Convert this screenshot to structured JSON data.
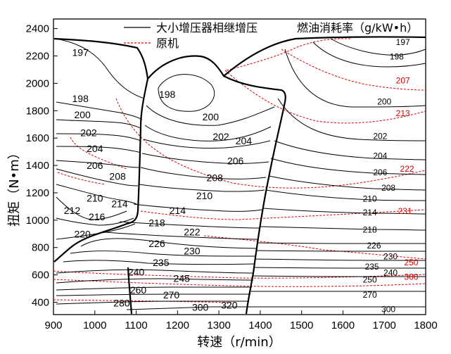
{
  "chart_data": {
    "type": "contour",
    "title": "燃油消耗率（g/kW•h）",
    "xlabel": "转速（r/min）",
    "ylabel": "扭矩（N•m）",
    "xlim": [
      900,
      1800
    ],
    "ylim": [
      310,
      2470
    ],
    "xticks": [
      "900",
      "1000",
      "1100",
      "1200",
      "1300",
      "1400",
      "1500",
      "1600",
      "1700",
      "1800"
    ],
    "yticks": [
      "400",
      "600",
      "800",
      "1000",
      "1200",
      "1400",
      "1600",
      "1800",
      "2000",
      "2200",
      "2400"
    ],
    "grid": false,
    "legend_placement": "top",
    "series": [
      {
        "name": "大小增压器相继增压",
        "style": "solid-black"
      },
      {
        "name": "原机",
        "style": "dashed-red"
      }
    ],
    "contour_labels_sequential": [
      {
        "text": "197",
        "x": 965,
        "y": 2225
      },
      {
        "text": "198",
        "x": 965,
        "y": 1890
      },
      {
        "text": "200",
        "x": 970,
        "y": 1770
      },
      {
        "text": "202",
        "x": 985,
        "y": 1640
      },
      {
        "text": "204",
        "x": 1000,
        "y": 1525
      },
      {
        "text": "206",
        "x": 1000,
        "y": 1400
      },
      {
        "text": "208",
        "x": 1055,
        "y": 1320
      },
      {
        "text": "210",
        "x": 1000,
        "y": 1160
      },
      {
        "text": "212",
        "x": 945,
        "y": 1070
      },
      {
        "text": "216",
        "x": 1005,
        "y": 1025
      },
      {
        "text": "214",
        "x": 1060,
        "y": 1120
      },
      {
        "text": "220",
        "x": 970,
        "y": 900
      },
      {
        "text": "198",
        "x": 1175,
        "y": 1920
      },
      {
        "text": "200",
        "x": 1280,
        "y": 1755
      },
      {
        "text": "202",
        "x": 1305,
        "y": 1610
      },
      {
        "text": "204",
        "x": 1360,
        "y": 1580
      },
      {
        "text": "206",
        "x": 1340,
        "y": 1435
      },
      {
        "text": "208",
        "x": 1290,
        "y": 1310
      },
      {
        "text": "210",
        "x": 1265,
        "y": 1180
      },
      {
        "text": "214",
        "x": 1200,
        "y": 1070
      },
      {
        "text": "218",
        "x": 1150,
        "y": 980
      },
      {
        "text": "222",
        "x": 1235,
        "y": 915
      },
      {
        "text": "226",
        "x": 1150,
        "y": 830
      },
      {
        "text": "230",
        "x": 1235,
        "y": 775
      },
      {
        "text": "235",
        "x": 1160,
        "y": 690
      },
      {
        "text": "240",
        "x": 1100,
        "y": 620
      },
      {
        "text": "245",
        "x": 1210,
        "y": 575
      },
      {
        "text": "260",
        "x": 1105,
        "y": 490
      },
      {
        "text": "270",
        "x": 1185,
        "y": 455
      },
      {
        "text": "280",
        "x": 1065,
        "y": 395
      },
      {
        "text": "300",
        "x": 1255,
        "y": 365
      },
      {
        "text": "320",
        "x": 1325,
        "y": 380
      }
    ],
    "contour_labels_original": [
      {
        "text": "197",
        "x": 1745,
        "y": 2305,
        "color": "#000000"
      },
      {
        "text": "198",
        "x": 1730,
        "y": 2200,
        "color": "#000000"
      },
      {
        "text": "207",
        "x": 1745,
        "y": 2025,
        "color": "#d40000"
      },
      {
        "text": "200",
        "x": 1700,
        "y": 1870,
        "color": "#000000"
      },
      {
        "text": "213",
        "x": 1745,
        "y": 1785,
        "color": "#d40000"
      },
      {
        "text": "202",
        "x": 1690,
        "y": 1620,
        "color": "#000000"
      },
      {
        "text": "204",
        "x": 1690,
        "y": 1475,
        "color": "#000000"
      },
      {
        "text": "206",
        "x": 1690,
        "y": 1355,
        "color": "#000000"
      },
      {
        "text": "222",
        "x": 1755,
        "y": 1380,
        "color": "#d40000"
      },
      {
        "text": "208",
        "x": 1710,
        "y": 1240,
        "color": "#000000"
      },
      {
        "text": "210",
        "x": 1665,
        "y": 1160,
        "color": "#000000"
      },
      {
        "text": "214",
        "x": 1665,
        "y": 1060,
        "color": "#000000"
      },
      {
        "text": "231",
        "x": 1750,
        "y": 1070,
        "color": "#d40000"
      },
      {
        "text": "218",
        "x": 1665,
        "y": 935,
        "color": "#000000"
      },
      {
        "text": "226",
        "x": 1675,
        "y": 820,
        "color": "#000000"
      },
      {
        "text": "230",
        "x": 1715,
        "y": 740,
        "color": "#000000"
      },
      {
        "text": "250",
        "x": 1765,
        "y": 695,
        "color": "#d40000"
      },
      {
        "text": "235",
        "x": 1670,
        "y": 665,
        "color": "#000000"
      },
      {
        "text": "240",
        "x": 1715,
        "y": 620,
        "color": "#000000"
      },
      {
        "text": "300",
        "x": 1765,
        "y": 590,
        "color": "#d40000"
      },
      {
        "text": "250",
        "x": 1665,
        "y": 570,
        "color": "#000000"
      },
      {
        "text": "270",
        "x": 1665,
        "y": 460,
        "color": "#000000"
      },
      {
        "text": "300",
        "x": 1710,
        "y": 355,
        "color": "#000000"
      }
    ]
  }
}
